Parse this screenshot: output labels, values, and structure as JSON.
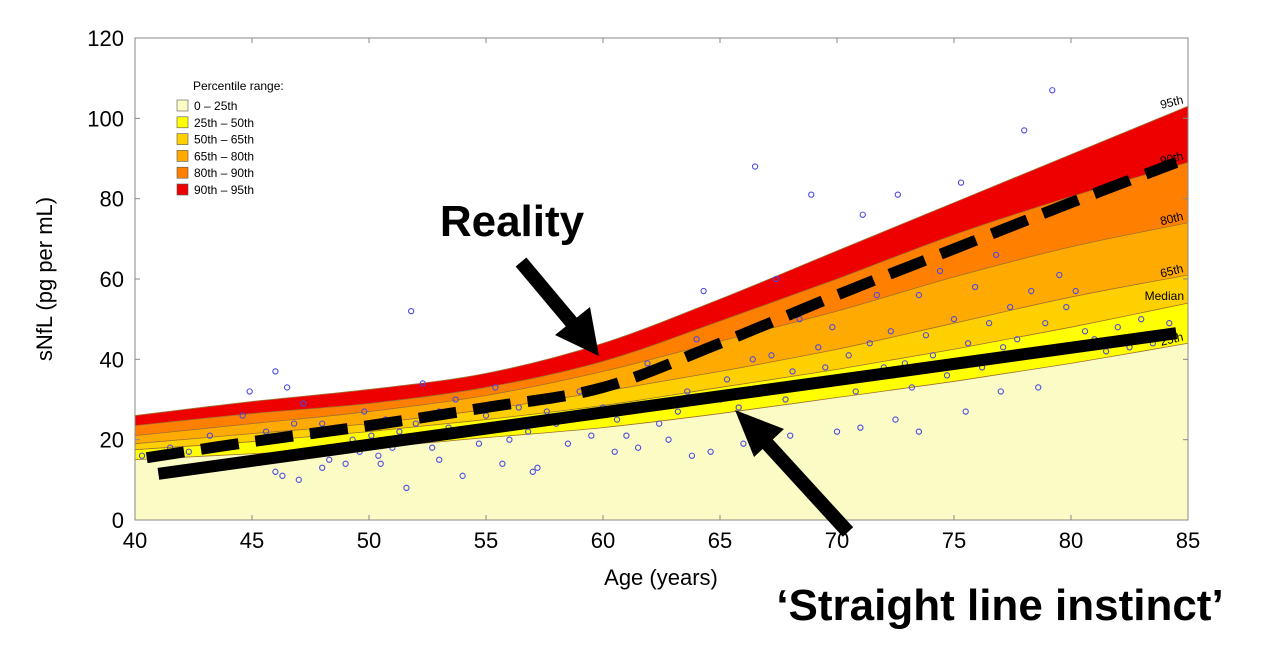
{
  "chart_data": {
    "type": "area",
    "xlabel": "Age (years)",
    "ylabel": "sNfL (pg per mL)",
    "xlim": [
      40,
      85
    ],
    "ylim": [
      0,
      120
    ],
    "xticks": [
      40,
      45,
      50,
      55,
      60,
      65,
      70,
      75,
      80,
      85
    ],
    "yticks": [
      0,
      20,
      40,
      60,
      80,
      100,
      120
    ],
    "legend_title": "Percentile range:",
    "legend_placement": "top-left",
    "grid": false,
    "x": [
      40,
      45,
      50,
      55,
      60,
      65,
      70,
      75,
      80,
      85
    ],
    "percentile_curves": [
      {
        "name": "25th",
        "values": [
          15,
          16.5,
          18,
          20.5,
          23,
          26.5,
          30.5,
          34.5,
          39,
          44
        ]
      },
      {
        "name": "Median",
        "values": [
          17.5,
          19.5,
          22,
          25,
          28.5,
          33,
          37.5,
          42.5,
          48,
          54
        ]
      },
      {
        "name": "65th",
        "values": [
          19,
          21.5,
          24,
          27.5,
          32,
          37,
          42.5,
          49,
          55.5,
          61
        ]
      },
      {
        "name": "80th",
        "values": [
          21,
          24,
          27,
          31,
          37,
          44.5,
          52,
          60.5,
          68,
          74
        ]
      },
      {
        "name": "90th",
        "values": [
          23.5,
          26.5,
          29,
          33,
          39.5,
          49.5,
          60,
          71,
          80.5,
          89
        ]
      },
      {
        "name": "95th",
        "values": [
          26,
          29.5,
          32.5,
          36.5,
          44,
          55,
          67,
          79,
          91,
          103
        ]
      }
    ],
    "bands": [
      {
        "name": "0 – 25th",
        "color": "#fbfbc6"
      },
      {
        "name": "25th – 50th",
        "color": "#ffff00"
      },
      {
        "name": "50th – 65th",
        "color": "#ffd000"
      },
      {
        "name": "65th – 80th",
        "color": "#ffaa00"
      },
      {
        "name": "80th – 90th",
        "color": "#ff7f00"
      },
      {
        "name": "90th – 95th",
        "color": "#ee0000"
      }
    ],
    "straight_line": {
      "x": [
        41,
        84.5
      ],
      "y": [
        11.5,
        46.5
      ]
    },
    "dashed_line": {
      "x": [
        40.5,
        45,
        50,
        55,
        60,
        65,
        70,
        75,
        80,
        84.5
      ],
      "y": [
        15.5,
        19.5,
        23.5,
        28,
        33,
        44,
        56,
        67.5,
        79,
        89
      ]
    },
    "scatter_color": "#4a4ae6",
    "scatter": [
      [
        40.3,
        16
      ],
      [
        41.5,
        18
      ],
      [
        42.3,
        17
      ],
      [
        43.2,
        21
      ],
      [
        44.2,
        19
      ],
      [
        44.6,
        26
      ],
      [
        44.9,
        32
      ],
      [
        45.6,
        22
      ],
      [
        46.0,
        37
      ],
      [
        46.3,
        11
      ],
      [
        46.5,
        33
      ],
      [
        46.8,
        24
      ],
      [
        47.0,
        10
      ],
      [
        47.2,
        29
      ],
      [
        47.6,
        21
      ],
      [
        48.0,
        24
      ],
      [
        48.3,
        15
      ],
      [
        48.6,
        23
      ],
      [
        49.0,
        14
      ],
      [
        49.3,
        20
      ],
      [
        49.6,
        17
      ],
      [
        49.8,
        27
      ],
      [
        50.1,
        21
      ],
      [
        50.4,
        16
      ],
      [
        50.7,
        25
      ],
      [
        51.0,
        18
      ],
      [
        51.3,
        22
      ],
      [
        51.6,
        8
      ],
      [
        51.8,
        52
      ],
      [
        52.0,
        24
      ],
      [
        52.3,
        34
      ],
      [
        52.7,
        18
      ],
      [
        53.0,
        27
      ],
      [
        53.4,
        23
      ],
      [
        53.7,
        30
      ],
      [
        54.0,
        11
      ],
      [
        54.3,
        22
      ],
      [
        54.7,
        19
      ],
      [
        55.0,
        26
      ],
      [
        55.4,
        33
      ],
      [
        55.7,
        14
      ],
      [
        56.0,
        20
      ],
      [
        56.4,
        28
      ],
      [
        56.8,
        22
      ],
      [
        57.2,
        13
      ],
      [
        57.6,
        27
      ],
      [
        58.0,
        24
      ],
      [
        58.5,
        19
      ],
      [
        59.0,
        32
      ],
      [
        59.5,
        21
      ],
      [
        60.0,
        28
      ],
      [
        60.6,
        25
      ],
      [
        61.0,
        21
      ],
      [
        61.5,
        18
      ],
      [
        61.9,
        39
      ],
      [
        62.4,
        24
      ],
      [
        62.8,
        20
      ],
      [
        63.2,
        27
      ],
      [
        63.6,
        32
      ],
      [
        64.0,
        45
      ],
      [
        64.3,
        57
      ],
      [
        64.6,
        17
      ],
      [
        65.0,
        30
      ],
      [
        65.3,
        35
      ],
      [
        65.8,
        28
      ],
      [
        66.1,
        24
      ],
      [
        66.4,
        40
      ],
      [
        66.5,
        88
      ],
      [
        66.8,
        33
      ],
      [
        67.2,
        41
      ],
      [
        67.4,
        60
      ],
      [
        67.8,
        30
      ],
      [
        68.1,
        37
      ],
      [
        68.4,
        50
      ],
      [
        68.7,
        34
      ],
      [
        68.9,
        81
      ],
      [
        69.2,
        43
      ],
      [
        69.5,
        38
      ],
      [
        69.8,
        48
      ],
      [
        70.2,
        35
      ],
      [
        70.5,
        41
      ],
      [
        70.8,
        32
      ],
      [
        71.1,
        76
      ],
      [
        71.4,
        44
      ],
      [
        71.7,
        56
      ],
      [
        72.0,
        38
      ],
      [
        72.3,
        47
      ],
      [
        72.6,
        81
      ],
      [
        72.9,
        39
      ],
      [
        73.2,
        33
      ],
      [
        73.5,
        56
      ],
      [
        73.8,
        46
      ],
      [
        74.1,
        41
      ],
      [
        74.4,
        62
      ],
      [
        74.7,
        36
      ],
      [
        75.0,
        50
      ],
      [
        75.3,
        84
      ],
      [
        75.6,
        44
      ],
      [
        75.9,
        58
      ],
      [
        76.2,
        38
      ],
      [
        76.5,
        49
      ],
      [
        76.8,
        66
      ],
      [
        77.1,
        43
      ],
      [
        77.4,
        53
      ],
      [
        77.7,
        45
      ],
      [
        78.0,
        97
      ],
      [
        78.3,
        57
      ],
      [
        78.6,
        33
      ],
      [
        78.9,
        49
      ],
      [
        79.2,
        107
      ],
      [
        79.5,
        61
      ],
      [
        79.8,
        53
      ],
      [
        80.2,
        57
      ],
      [
        80.6,
        47
      ],
      [
        81.0,
        45
      ],
      [
        81.5,
        42
      ],
      [
        82.0,
        48
      ],
      [
        82.5,
        43
      ],
      [
        83.0,
        50
      ],
      [
        83.5,
        44
      ],
      [
        84.2,
        49
      ],
      [
        70.0,
        22
      ],
      [
        71.0,
        23
      ],
      [
        72.5,
        25
      ],
      [
        73.5,
        22
      ],
      [
        60.5,
        17
      ],
      [
        63.8,
        16
      ],
      [
        66.0,
        19
      ],
      [
        68.0,
        21
      ],
      [
        75.5,
        27
      ],
      [
        77.0,
        32
      ],
      [
        50.5,
        14
      ],
      [
        53.0,
        15
      ],
      [
        46.0,
        12
      ],
      [
        48.0,
        13
      ],
      [
        57.0,
        12
      ]
    ]
  },
  "annotations": {
    "reality": "Reality",
    "straight_line_instinct": "‘Straight line instinct’"
  }
}
